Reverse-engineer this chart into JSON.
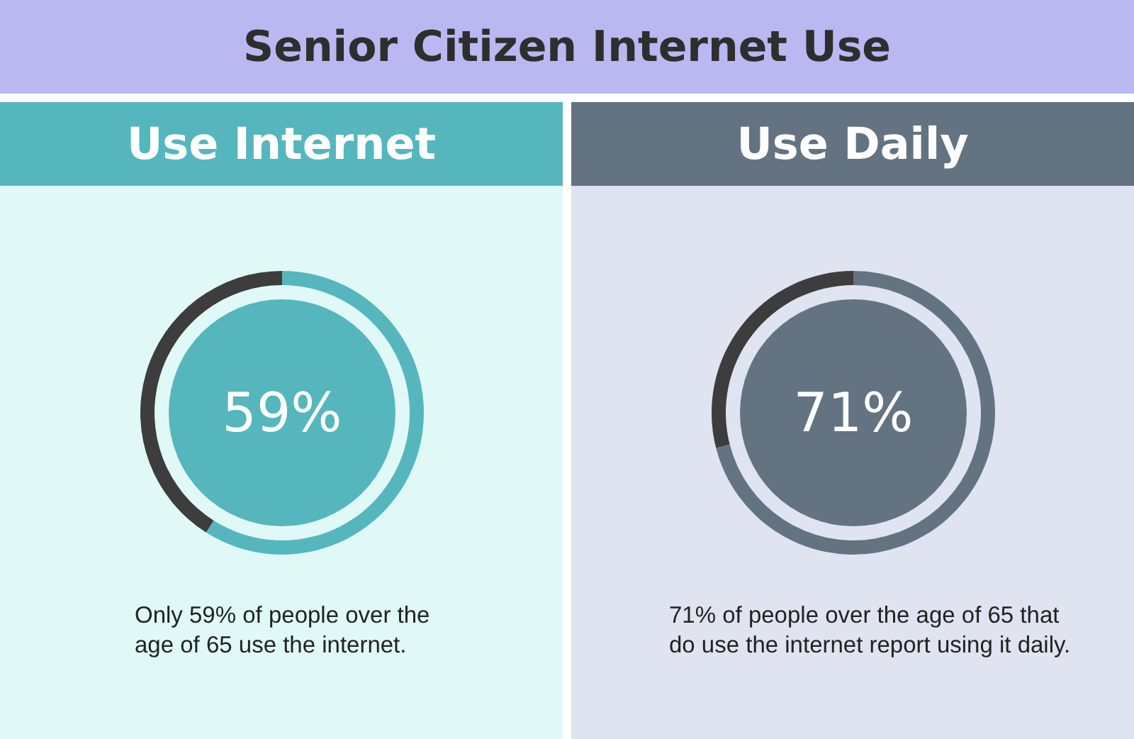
{
  "chart_data": [
    {
      "type": "other",
      "title": "Senior Citizen Internet Use"
    },
    {
      "type": "donut",
      "title": "Use Internet",
      "categories": [
        null,
        null
      ],
      "values": [
        59,
        41
      ],
      "colors": [
        "#55b7bd",
        "#3d3d3d"
      ],
      "annotations": [
        "59%",
        "Only 59% of people over the age of 65 use the internet."
      ]
    },
    {
      "type": "donut",
      "title": "Use Daily",
      "categories": [
        null,
        null
      ],
      "values": [
        71,
        29
      ],
      "colors": [
        "#637381",
        "#3d3d3d"
      ],
      "annotations": [
        "71%",
        "71% of people over the age of 65 that do use the internet report using it daily."
      ]
    }
  ]
}
